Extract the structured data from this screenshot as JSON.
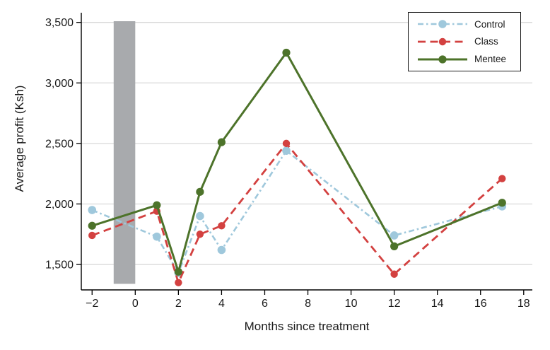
{
  "chart_data": {
    "type": "line",
    "title": "",
    "xlabel": "Months since treatment",
    "ylabel": "Average profit (Ksh)",
    "x": [
      -2,
      1,
      2,
      3,
      4,
      7,
      12,
      17
    ],
    "series": [
      {
        "name": "Control",
        "color": "#9fc8dc",
        "style": "dashdot",
        "values": [
          1950,
          1730,
          1430,
          1900,
          1620,
          2440,
          1740,
          1980
        ]
      },
      {
        "name": "Class",
        "color": "#d34140",
        "style": "dashed",
        "values": [
          1740,
          1940,
          1350,
          1750,
          1820,
          2500,
          1420,
          2210
        ]
      },
      {
        "name": "Mentee",
        "color": "#4d732a",
        "style": "solid",
        "values": [
          1820,
          1990,
          1440,
          2100,
          2510,
          3250,
          1650,
          2010
        ]
      }
    ],
    "xticks": [
      -2,
      0,
      2,
      4,
      6,
      8,
      10,
      12,
      14,
      16,
      18
    ],
    "xtick_labels": [
      "−2",
      "0",
      "2",
      "4",
      "6",
      "8",
      "10",
      "12",
      "14",
      "16",
      "18"
    ],
    "yticks": [
      1500,
      2000,
      2500,
      3000,
      3500
    ],
    "ytick_labels": [
      "1,500",
      "2,000",
      "2,500",
      "3,000",
      "3,500"
    ],
    "xlim": [
      -2.5,
      18.4
    ],
    "ylim": [
      1290,
      3580
    ],
    "grid": "horizontal",
    "legend_position": "top-right",
    "shaded_region": {
      "x_from": -1,
      "x_to": 0,
      "y_from": 1340,
      "y_to": 3510,
      "color": "#a8aaad"
    },
    "colors": {
      "grid": "#d9d9d9",
      "axis": "#000000",
      "text": "#1a1a1a",
      "background": "#ffffff"
    }
  }
}
